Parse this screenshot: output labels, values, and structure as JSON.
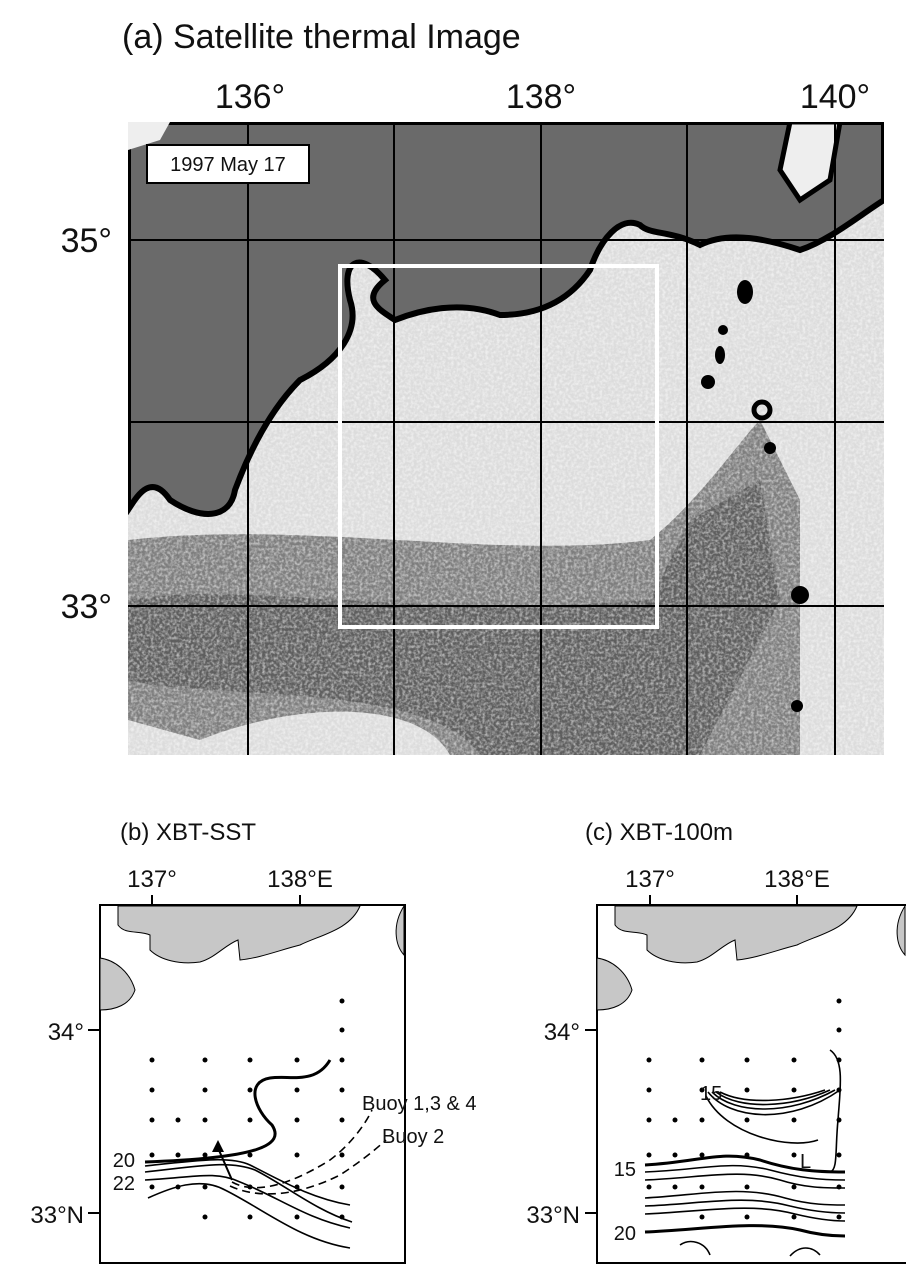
{
  "panel_a": {
    "title": "(a) Satellite thermal Image",
    "lon_labels": [
      "136°",
      "138°",
      "140°"
    ],
    "lat_labels": [
      "35°",
      "33°"
    ],
    "date": "1997 May 17"
  },
  "panel_b": {
    "title": "(b) XBT-SST",
    "lon_labels": [
      "137°",
      "138°E"
    ],
    "lat_labels": [
      "34°",
      "33°N"
    ],
    "contour_labels": [
      "20",
      "22"
    ],
    "annotations": [
      "Buoy 1,3 & 4",
      "Buoy 2"
    ]
  },
  "panel_c": {
    "title": "(c) XBT-100m",
    "lon_labels": [
      "137°",
      "138°E"
    ],
    "lat_labels": [
      "34°",
      "33°N"
    ],
    "contour_labels": [
      "15",
      "15",
      "20"
    ],
    "annotations": [
      "L"
    ]
  }
}
